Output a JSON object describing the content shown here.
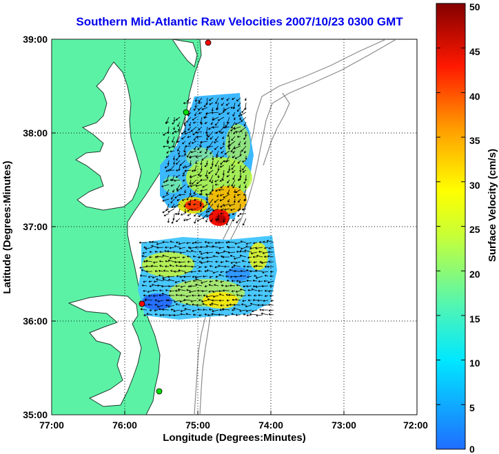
{
  "title": "Southern Mid-Atlantic Raw Velocities 2007/10/23 0300 GMT",
  "map": {
    "xlabel": "Longitude (Degrees:Minutes)",
    "ylabel": "Latitude (Degrees:Minutes)",
    "lon_ticks": [
      "77:00",
      "76:00",
      "75:00",
      "74:00",
      "73:00",
      "72:00"
    ],
    "lat_ticks": [
      "39:00",
      "38:00",
      "37:00",
      "36:00",
      "35:00"
    ],
    "land_color": "#5cf2a6",
    "grid": true
  },
  "colorbar": {
    "label": "Surface Velocity (cm/s)",
    "ticks": [
      "0",
      "5",
      "10",
      "15",
      "20",
      "25",
      "30",
      "35",
      "40",
      "45",
      "50"
    ],
    "range": [
      0,
      50
    ]
  },
  "stations": [
    {
      "name": "station-north",
      "color": "#ff0000"
    },
    {
      "name": "station-delmarva",
      "color": "#00dd00"
    },
    {
      "name": "station-virginia-beach",
      "color": "#ff0000"
    },
    {
      "name": "station-outer-banks",
      "color": "#00dd00"
    }
  ]
}
